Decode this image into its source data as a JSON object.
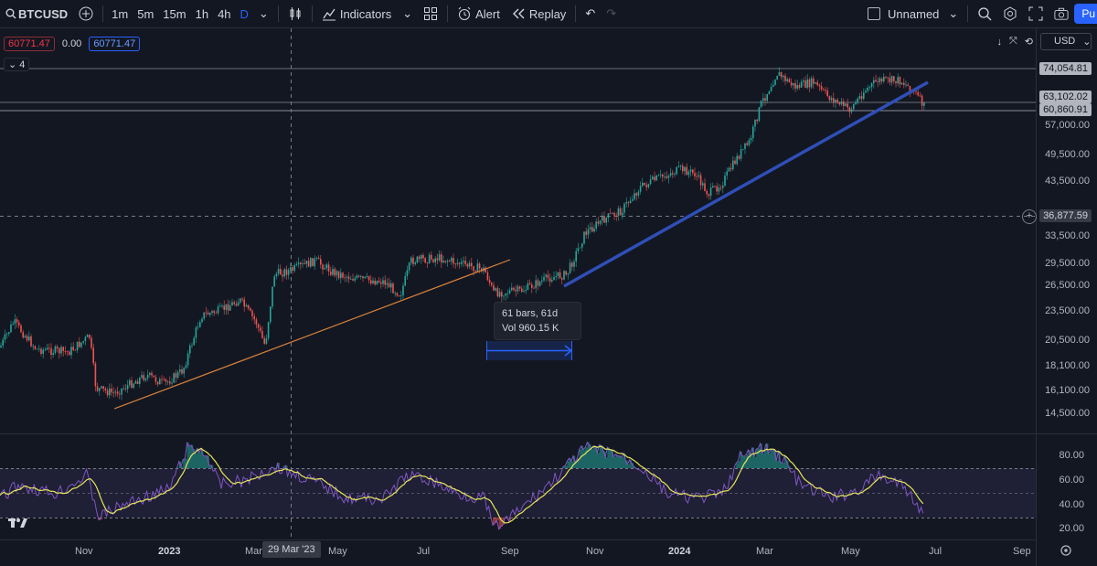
{
  "toolbar": {
    "symbol": "BTCUSD",
    "timeframes": [
      "1m",
      "5m",
      "15m",
      "1h",
      "4h",
      "D"
    ],
    "indicators_label": "Indicators",
    "alert_label": "Alert",
    "replay_label": "Replay",
    "layout_name": "Unnamed",
    "publish_label": "Pu"
  },
  "legend": {
    "sell_price": "60771.47",
    "change": "0.00",
    "buy_price": "60771.47",
    "collapsed_count": "4"
  },
  "currency": "USD",
  "price_axis": [
    "49,500.00",
    "43,500.00",
    "33,500.00",
    "29,500.00",
    "26,500.00",
    "23,500.00",
    "20,500.00",
    "18,100.00",
    "16,100.00",
    "14,500.00",
    "57,000.00"
  ],
  "price_tags": {
    "high": "74,054.81",
    "level_mid": "63,102.02",
    "level_low": "60,860.91",
    "crosshair": "36,877.59"
  },
  "rsi_axis": [
    "80.00",
    "60.00",
    "40.00",
    "20.00"
  ],
  "time_axis": {
    "labels": [
      "Nov",
      "2023",
      "Mar",
      "May",
      "Jul",
      "Sep",
      "Nov",
      "2024",
      "Mar",
      "May",
      "Jul",
      "Sep"
    ],
    "crosshair_date": "29 Mar '23"
  },
  "measure": {
    "line1": "61 bars, 61d",
    "line2": "Vol 960.15 K"
  },
  "colors": {
    "background": "#131722",
    "up": "#26a69a",
    "down": "#ef5350",
    "trendline_blue": "#2f4fb7",
    "trendline_orange": "#d9823b",
    "rsi": "#7e57c2",
    "rsi_ma": "#e6e65a"
  },
  "icons": [
    "search-icon",
    "add-symbol-icon",
    "bar-style-icon",
    "indicators-icon",
    "layouts-icon",
    "alert-icon",
    "replay-icon",
    "undo-icon",
    "redo-icon",
    "quick-search-icon",
    "settings-icon",
    "fullscreen-icon",
    "snapshot-icon",
    "tradingview-logo"
  ]
}
